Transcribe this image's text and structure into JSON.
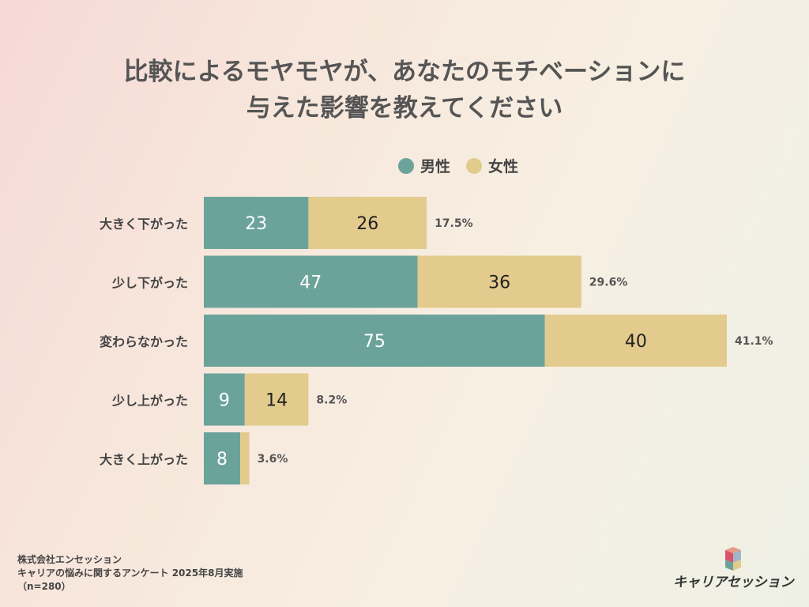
{
  "title_line1": "比較によるモヤモヤが、あなたのモチベーションに",
  "title_line2": "与えた影響を教えてください",
  "colors": {
    "male": "#6ba39b",
    "female": "#e2cb8c",
    "text": "#555555"
  },
  "legend": {
    "male": "男性",
    "female": "女性"
  },
  "chart_data": {
    "type": "bar",
    "orientation": "horizontal",
    "stacked": true,
    "categories": [
      "大きく下がった",
      "少し下がった",
      "変わらなかった",
      "少し上がった",
      "大きく上がった"
    ],
    "series": [
      {
        "name": "男性",
        "values": [
          23,
          47,
          75,
          9,
          8
        ]
      },
      {
        "name": "女性",
        "values": [
          26,
          36,
          40,
          14,
          2
        ]
      }
    ],
    "percent_labels": [
      "17.5%",
      "29.6%",
      "41.1%",
      "8.2%",
      "3.6%"
    ],
    "xlim": [
      0,
      115
    ],
    "grid": false,
    "legend_position": "top-right"
  },
  "footer": {
    "line1": "株式会社エンセッション",
    "line2": "キャリアの悩みに関するアンケート 2025年8月実施",
    "line3": "（n=280）"
  },
  "logo": {
    "text": "キャリアセッション"
  }
}
